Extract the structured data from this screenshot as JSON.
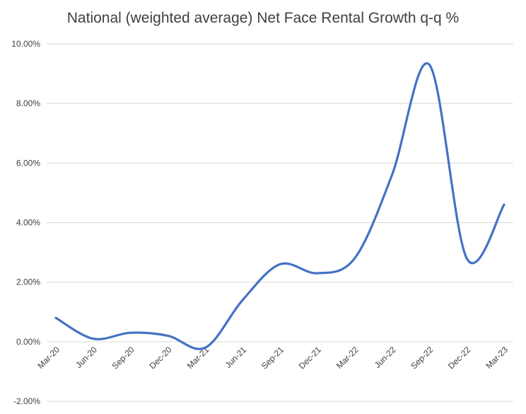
{
  "chart_data": {
    "type": "line",
    "title": "National (weighted average) Net Face Rental Growth q-q %",
    "xlabel": "",
    "ylabel": "",
    "categories": [
      "Mar-20",
      "Jun-20",
      "Sep-20",
      "Dec-20",
      "Mar-21",
      "Jun-21",
      "Sep-21",
      "Dec-21",
      "Mar-22",
      "Jun-22",
      "Sep-22",
      "Dec-22",
      "Mar-23"
    ],
    "series": [
      {
        "values": [
          0.8,
          0.1,
          0.3,
          0.2,
          -0.2,
          1.4,
          2.6,
          2.3,
          2.8,
          5.6,
          9.3,
          2.8,
          4.6
        ]
      }
    ],
    "ylim": [
      -2,
      10
    ],
    "yticks": [
      "-2.00%",
      "0.00%",
      "2.00%",
      "4.00%",
      "6.00%",
      "8.00%",
      "10.00%"
    ],
    "grid": true,
    "line_color": "#4472C4",
    "smooth": true
  }
}
